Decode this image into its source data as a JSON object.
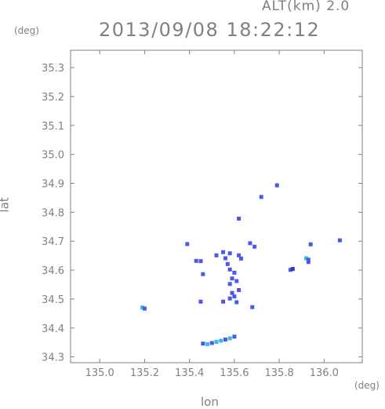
{
  "header": {
    "altitude": "ALT(km) 2.0",
    "datetime": "2013/09/08 18:22:12"
  },
  "chart_data": {
    "type": "scatter",
    "title": "2013/09/08 18:22:12",
    "xlabel": "lon",
    "ylabel": "lat",
    "x_unit": "(deg)",
    "y_unit": "(deg)",
    "xlim": [
      134.87,
      136.17
    ],
    "ylim": [
      34.28,
      35.36
    ],
    "x_ticks": [
      "135.0",
      "135.2",
      "135.4",
      "135.6",
      "135.8",
      "136.0"
    ],
    "y_ticks": [
      "34.3",
      "34.4",
      "34.5",
      "34.6",
      "34.7",
      "34.8",
      "34.9",
      "35.0",
      "35.1",
      "35.2",
      "35.3"
    ],
    "grid": false,
    "colors": {
      "axis": "#808080",
      "echo_blue": "#4a5ae6",
      "echo_cyan": "#3cb8ee",
      "echo_dark": "#2a3ab8"
    },
    "points": [
      {
        "x": 135.19,
        "y": 34.471,
        "c": "cyan"
      },
      {
        "x": 135.2,
        "y": 34.467,
        "c": "blue"
      },
      {
        "x": 135.46,
        "y": 34.346,
        "c": "blue"
      },
      {
        "x": 135.48,
        "y": 34.344,
        "c": "cyan"
      },
      {
        "x": 135.5,
        "y": 34.348,
        "c": "blue"
      },
      {
        "x": 135.52,
        "y": 34.352,
        "c": "cyan"
      },
      {
        "x": 135.54,
        "y": 34.356,
        "c": "cyan"
      },
      {
        "x": 135.56,
        "y": 34.36,
        "c": "blue"
      },
      {
        "x": 135.58,
        "y": 34.364,
        "c": "cyan"
      },
      {
        "x": 135.6,
        "y": 34.37,
        "c": "blue"
      },
      {
        "x": 135.45,
        "y": 34.491,
        "c": "blue"
      },
      {
        "x": 135.39,
        "y": 34.69,
        "c": "blue"
      },
      {
        "x": 135.43,
        "y": 34.632,
        "c": "blue"
      },
      {
        "x": 135.45,
        "y": 34.631,
        "c": "blue"
      },
      {
        "x": 135.46,
        "y": 34.586,
        "c": "blue"
      },
      {
        "x": 135.52,
        "y": 34.651,
        "c": "blue"
      },
      {
        "x": 135.55,
        "y": 34.662,
        "c": "blue"
      },
      {
        "x": 135.56,
        "y": 34.641,
        "c": "blue"
      },
      {
        "x": 135.58,
        "y": 34.658,
        "c": "blue"
      },
      {
        "x": 135.62,
        "y": 34.651,
        "c": "blue"
      },
      {
        "x": 135.63,
        "y": 34.64,
        "c": "blue"
      },
      {
        "x": 135.57,
        "y": 34.621,
        "c": "blue"
      },
      {
        "x": 135.58,
        "y": 34.602,
        "c": "blue"
      },
      {
        "x": 135.6,
        "y": 34.591,
        "c": "blue"
      },
      {
        "x": 135.59,
        "y": 34.571,
        "c": "blue"
      },
      {
        "x": 135.61,
        "y": 34.562,
        "c": "blue"
      },
      {
        "x": 135.58,
        "y": 34.552,
        "c": "blue"
      },
      {
        "x": 135.59,
        "y": 34.521,
        "c": "blue"
      },
      {
        "x": 135.6,
        "y": 34.509,
        "c": "blue"
      },
      {
        "x": 135.58,
        "y": 34.502,
        "c": "blue"
      },
      {
        "x": 135.62,
        "y": 34.531,
        "c": "blue"
      },
      {
        "x": 135.55,
        "y": 34.491,
        "c": "blue"
      },
      {
        "x": 135.61,
        "y": 34.489,
        "c": "blue"
      },
      {
        "x": 135.67,
        "y": 34.693,
        "c": "blue"
      },
      {
        "x": 135.69,
        "y": 34.681,
        "c": "blue"
      },
      {
        "x": 135.68,
        "y": 34.472,
        "c": "blue"
      },
      {
        "x": 135.62,
        "y": 34.778,
        "c": "blue"
      },
      {
        "x": 135.72,
        "y": 34.853,
        "c": "blue"
      },
      {
        "x": 135.79,
        "y": 34.893,
        "c": "blue"
      },
      {
        "x": 135.85,
        "y": 34.601,
        "c": "blue"
      },
      {
        "x": 135.86,
        "y": 34.604,
        "c": "dark"
      },
      {
        "x": 135.92,
        "y": 34.641,
        "c": "cyan"
      },
      {
        "x": 135.93,
        "y": 34.636,
        "c": "blue"
      },
      {
        "x": 135.93,
        "y": 34.628,
        "c": "blue"
      },
      {
        "x": 135.94,
        "y": 34.689,
        "c": "blue"
      },
      {
        "x": 136.07,
        "y": 34.703,
        "c": "blue"
      }
    ]
  }
}
